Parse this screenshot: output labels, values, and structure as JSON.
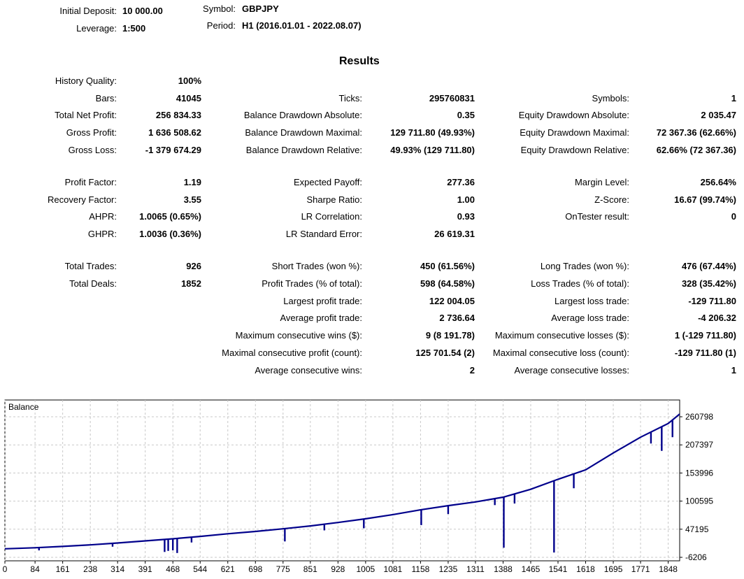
{
  "header": {
    "initial_deposit": {
      "label": "Initial Deposit:",
      "value": "10 000.00"
    },
    "leverage": {
      "label": "Leverage:",
      "value": "1:500"
    },
    "symbol": {
      "label": "Symbol:",
      "value": "GBPJPY"
    },
    "period": {
      "label": "Period:",
      "value": "H1 (2016.01.01 - 2022.08.07)"
    }
  },
  "results_title": "Results",
  "col1": {
    "history_quality": {
      "label": "History Quality:",
      "value": "100%"
    },
    "bars": {
      "label": "Bars:",
      "value": "41045"
    },
    "total_net_profit": {
      "label": "Total Net Profit:",
      "value": "256 834.33"
    },
    "gross_profit": {
      "label": "Gross Profit:",
      "value": "1 636 508.62"
    },
    "gross_loss": {
      "label": "Gross Loss:",
      "value": "-1 379 674.29"
    },
    "profit_factor": {
      "label": "Profit Factor:",
      "value": "1.19"
    },
    "recovery_factor": {
      "label": "Recovery Factor:",
      "value": "3.55"
    },
    "ahpr": {
      "label": "AHPR:",
      "value": "1.0065 (0.65%)"
    },
    "ghpr": {
      "label": "GHPR:",
      "value": "1.0036 (0.36%)"
    },
    "total_trades": {
      "label": "Total Trades:",
      "value": "926"
    },
    "total_deals": {
      "label": "Total Deals:",
      "value": "1852"
    }
  },
  "col2": {
    "ticks": {
      "label": "Ticks:",
      "value": "295760831"
    },
    "balance_dd_abs": {
      "label": "Balance Drawdown Absolute:",
      "value": "0.35"
    },
    "balance_dd_max": {
      "label": "Balance Drawdown Maximal:",
      "value": "129 711.80 (49.93%)"
    },
    "balance_dd_rel": {
      "label": "Balance Drawdown Relative:",
      "value": "49.93% (129 711.80)"
    },
    "expected_payoff": {
      "label": "Expected Payoff:",
      "value": "277.36"
    },
    "sharpe_ratio": {
      "label": "Sharpe Ratio:",
      "value": "1.00"
    },
    "lr_correlation": {
      "label": "LR Correlation:",
      "value": "0.93"
    },
    "lr_std_error": {
      "label": "LR Standard Error:",
      "value": "26 619.31"
    },
    "short_trades": {
      "label": "Short Trades (won %):",
      "value": "450 (61.56%)"
    },
    "profit_trades": {
      "label": "Profit Trades (% of total):",
      "value": "598 (64.58%)"
    },
    "largest_profit": {
      "label": "Largest profit trade:",
      "value": "122 004.05"
    },
    "average_profit": {
      "label": "Average profit trade:",
      "value": "2 736.64"
    },
    "max_consec_wins": {
      "label": "Maximum consecutive wins ($):",
      "value": "9 (8 191.78)"
    },
    "maximal_consec_profit": {
      "label": "Maximal consecutive profit (count):",
      "value": "125 701.54 (2)"
    },
    "avg_consec_wins": {
      "label": "Average consecutive wins:",
      "value": "2"
    }
  },
  "col3": {
    "symbols": {
      "label": "Symbols:",
      "value": "1"
    },
    "equity_dd_abs": {
      "label": "Equity Drawdown Absolute:",
      "value": "2 035.47"
    },
    "equity_dd_max": {
      "label": "Equity Drawdown Maximal:",
      "value": "72 367.36 (62.66%)"
    },
    "equity_dd_rel": {
      "label": "Equity Drawdown Relative:",
      "value": "62.66% (72 367.36)"
    },
    "margin_level": {
      "label": "Margin Level:",
      "value": "256.64%"
    },
    "z_score": {
      "label": "Z-Score:",
      "value": "16.67 (99.74%)"
    },
    "ontester": {
      "label": "OnTester result:",
      "value": "0"
    },
    "long_trades": {
      "label": "Long Trades (won %):",
      "value": "476 (67.44%)"
    },
    "loss_trades": {
      "label": "Loss Trades (% of total):",
      "value": "328 (35.42%)"
    },
    "largest_loss": {
      "label": "Largest loss trade:",
      "value": "-129 711.80"
    },
    "average_loss": {
      "label": "Average loss trade:",
      "value": "-4 206.32"
    },
    "max_consec_losses": {
      "label": "Maximum consecutive losses ($):",
      "value": "1 (-129 711.80)"
    },
    "maximal_consec_loss": {
      "label": "Maximal consecutive loss (count):",
      "value": "-129 711.80 (1)"
    },
    "avg_consec_losses": {
      "label": "Average consecutive losses:",
      "value": "1"
    }
  },
  "chart_data": {
    "type": "line",
    "title": "Balance",
    "xlim": [
      0,
      1880
    ],
    "ylim": [
      -6206,
      270000
    ],
    "x_ticks": [
      0,
      84,
      161,
      238,
      314,
      391,
      468,
      544,
      621,
      698,
      775,
      851,
      928,
      1005,
      1081,
      1158,
      1235,
      1311,
      1388,
      1465,
      1541,
      1618,
      1695,
      1771,
      1848
    ],
    "y_ticks": [
      -6206,
      47195,
      100595,
      153996,
      207397,
      260798
    ],
    "line_color": "#00008b",
    "grid": true,
    "series": [
      {
        "x": [
          0,
          84,
          161,
          238,
          314,
          391,
          468,
          544,
          621,
          698,
          775,
          851,
          928,
          1005,
          1081,
          1158,
          1235,
          1311,
          1388,
          1465,
          1541,
          1618,
          1695,
          1771,
          1848,
          1880
        ],
        "y": [
          10000,
          12000,
          14500,
          17500,
          21000,
          25000,
          29000,
          33500,
          38500,
          43000,
          48000,
          53500,
          60000,
          67000,
          75000,
          84000,
          92000,
          99000,
          108000,
          123000,
          142000,
          160000,
          192000,
          222000,
          248000,
          266000
        ]
      }
    ],
    "drawdown_spikes": [
      {
        "x": 95,
        "low": 7000
      },
      {
        "x": 300,
        "low": 14000
      },
      {
        "x": 445,
        "low": 4000
      },
      {
        "x": 455,
        "low": 6000
      },
      {
        "x": 468,
        "low": 7000
      },
      {
        "x": 480,
        "low": 2000
      },
      {
        "x": 520,
        "low": 22000
      },
      {
        "x": 780,
        "low": 24000
      },
      {
        "x": 890,
        "low": 45000
      },
      {
        "x": 1000,
        "low": 49000
      },
      {
        "x": 1160,
        "low": 55000
      },
      {
        "x": 1235,
        "low": 76000
      },
      {
        "x": 1365,
        "low": 93000
      },
      {
        "x": 1390,
        "low": 12000
      },
      {
        "x": 1420,
        "low": 96000
      },
      {
        "x": 1530,
        "low": 3000
      },
      {
        "x": 1585,
        "low": 125000
      },
      {
        "x": 1800,
        "low": 210000
      },
      {
        "x": 1830,
        "low": 196000
      },
      {
        "x": 1860,
        "low": 222000
      }
    ]
  }
}
